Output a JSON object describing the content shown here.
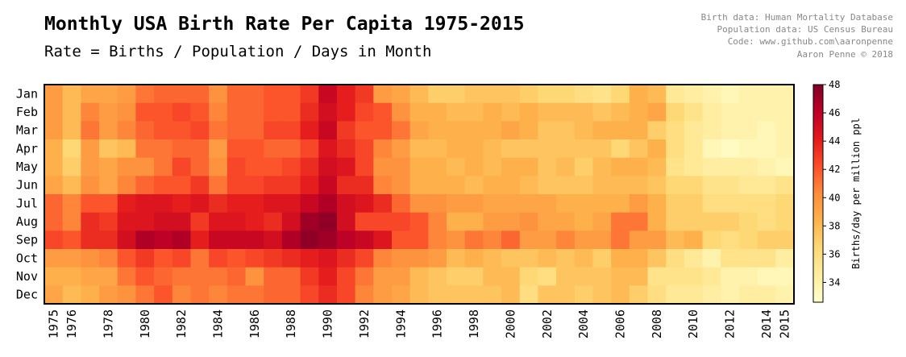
{
  "chart_data": {
    "type": "heatmap",
    "title": "Monthly USA Birth Rate Per Capita 1975-2015",
    "subtitle": "Rate = Births / Population / Days in Month",
    "credits": [
      "Birth data: Human Mortality Database",
      "Population data: US Census Bureau",
      "Code: www.github.com\\aaronpenne",
      "Aaron Penne © 2018"
    ],
    "row_labels": [
      "Jan",
      "Feb",
      "Mar",
      "Apr",
      "May",
      "Jun",
      "Jul",
      "Aug",
      "Sep",
      "Oct",
      "Nov",
      "Dec"
    ],
    "years": [
      1975,
      1976,
      1977,
      1978,
      1979,
      1980,
      1981,
      1982,
      1983,
      1984,
      1985,
      1986,
      1987,
      1988,
      1989,
      1990,
      1991,
      1992,
      1993,
      1994,
      1995,
      1996,
      1997,
      1998,
      1999,
      2000,
      2001,
      2002,
      2003,
      2004,
      2005,
      2006,
      2007,
      2008,
      2009,
      2010,
      2011,
      2012,
      2013,
      2014,
      2015
    ],
    "x_tick_labels": [
      "1975",
      "1976",
      "1978",
      "1980",
      "1982",
      "1984",
      "1986",
      "1988",
      "1990",
      "1992",
      "1994",
      "1996",
      "1998",
      "2000",
      "2002",
      "2004",
      "2006",
      "2008",
      "2010",
      "2012",
      "2014",
      "2015"
    ],
    "colorbar": {
      "label": "Births/day per million ppl",
      "ticks": [
        "34",
        "36",
        "38",
        "40",
        "42",
        "44",
        "46",
        "48"
      ],
      "vmin": 32.6,
      "vmax": 48,
      "colormap": "YlOrRd"
    },
    "values": [
      [
        39.5,
        38.0,
        39.0,
        39.0,
        39.5,
        41.0,
        41.5,
        41.5,
        41.5,
        40.0,
        41.5,
        41.5,
        42.0,
        42.0,
        43.0,
        45.5,
        44.0,
        43.0,
        39.5,
        39.0,
        38.0,
        37.0,
        37.0,
        37.5,
        37.5,
        37.5,
        37.0,
        36.5,
        36.5,
        36.0,
        35.5,
        36.5,
        38.5,
        38.0,
        35.0,
        34.5,
        34.0,
        33.5,
        34.0,
        34.0,
        34.0
      ],
      [
        39.5,
        38.0,
        40.5,
        39.5,
        40.0,
        42.0,
        42.0,
        42.5,
        42.0,
        40.5,
        41.5,
        41.5,
        42.0,
        42.0,
        43.5,
        45.0,
        44.0,
        42.5,
        42.0,
        40.0,
        38.5,
        38.5,
        38.0,
        38.0,
        38.5,
        38.0,
        38.5,
        38.0,
        38.0,
        38.0,
        37.5,
        38.0,
        38.5,
        39.0,
        36.5,
        35.5,
        34.5,
        34.0,
        34.0,
        34.0,
        34.0
      ],
      [
        39.5,
        38.0,
        41.0,
        39.5,
        40.5,
        41.5,
        42.0,
        42.0,
        42.5,
        41.0,
        41.5,
        41.5,
        42.5,
        42.5,
        44.0,
        45.5,
        43.0,
        42.0,
        42.0,
        41.0,
        39.0,
        38.5,
        38.5,
        38.5,
        38.5,
        39.0,
        38.5,
        37.5,
        37.5,
        38.0,
        38.5,
        38.5,
        38.5,
        37.0,
        36.0,
        35.0,
        34.5,
        34.0,
        34.0,
        33.5,
        34.0
      ],
      [
        38.5,
        36.5,
        39.5,
        37.5,
        38.0,
        41.0,
        41.0,
        41.5,
        41.5,
        39.5,
        42.0,
        42.0,
        41.5,
        41.5,
        42.5,
        44.5,
        43.5,
        42.5,
        40.5,
        39.5,
        38.0,
        38.0,
        38.5,
        38.5,
        38.0,
        37.5,
        37.5,
        37.5,
        37.5,
        37.5,
        37.5,
        36.5,
        37.5,
        38.5,
        36.0,
        35.0,
        33.5,
        33.0,
        33.5,
        33.5,
        34.0
      ],
      [
        38.5,
        37.0,
        39.5,
        39.0,
        40.0,
        40.0,
        41.0,
        42.5,
        41.5,
        40.0,
        42.5,
        42.0,
        42.0,
        42.5,
        43.5,
        45.0,
        44.5,
        42.5,
        40.0,
        40.0,
        38.5,
        38.5,
        38.0,
        38.5,
        38.0,
        38.5,
        38.5,
        37.5,
        38.0,
        37.0,
        38.0,
        38.5,
        38.5,
        38.0,
        35.5,
        35.0,
        34.5,
        34.5,
        34.5,
        34.0,
        33.5
      ],
      [
        39.0,
        38.0,
        40.0,
        39.0,
        40.5,
        41.5,
        42.0,
        42.0,
        43.0,
        41.0,
        42.5,
        42.5,
        43.0,
        43.0,
        44.0,
        45.5,
        43.5,
        43.5,
        40.5,
        40.0,
        38.5,
        38.5,
        38.5,
        38.0,
        38.5,
        38.5,
        38.0,
        37.5,
        37.5,
        37.5,
        38.0,
        38.0,
        38.0,
        37.5,
        36.5,
        36.5,
        35.5,
        35.5,
        35.0,
        35.0,
        35.5
      ],
      [
        41.5,
        40.5,
        42.0,
        42.0,
        44.0,
        44.5,
        44.5,
        44.0,
        44.5,
        43.5,
        44.0,
        44.0,
        44.5,
        44.5,
        45.5,
        46.5,
        45.0,
        44.5,
        43.5,
        41.5,
        40.0,
        40.0,
        39.5,
        39.5,
        39.0,
        39.0,
        39.0,
        39.0,
        38.5,
        38.5,
        38.5,
        38.5,
        39.5,
        38.5,
        37.0,
        37.0,
        36.0,
        36.0,
        36.0,
        36.0,
        36.5
      ],
      [
        41.5,
        40.5,
        43.5,
        43.0,
        44.5,
        44.5,
        45.0,
        45.0,
        43.0,
        44.5,
        44.5,
        44.0,
        43.5,
        45.0,
        47.0,
        47.5,
        45.0,
        42.5,
        42.5,
        42.5,
        42.0,
        40.5,
        38.5,
        38.5,
        39.5,
        39.5,
        40.0,
        39.0,
        39.0,
        38.5,
        39.0,
        41.0,
        41.0,
        38.5,
        37.0,
        37.0,
        37.0,
        37.0,
        36.5,
        36.0,
        36.5
      ],
      [
        42.5,
        42.0,
        43.5,
        43.5,
        45.0,
        46.5,
        46.0,
        46.5,
        44.0,
        45.5,
        45.5,
        45.5,
        45.0,
        46.5,
        47.5,
        47.0,
        46.0,
        45.5,
        44.5,
        42.0,
        42.0,
        40.5,
        40.0,
        41.0,
        40.5,
        41.5,
        39.5,
        39.5,
        40.5,
        39.5,
        39.5,
        41.0,
        39.5,
        39.5,
        38.0,
        38.5,
        36.5,
        36.0,
        36.5,
        37.0,
        37.0
      ],
      [
        39.5,
        39.5,
        40.0,
        40.5,
        42.0,
        43.0,
        42.0,
        42.5,
        41.0,
        42.5,
        42.0,
        42.5,
        43.0,
        43.5,
        44.0,
        44.5,
        43.5,
        42.5,
        40.5,
        40.0,
        40.0,
        39.5,
        38.0,
        38.5,
        38.0,
        37.5,
        37.5,
        38.0,
        37.5,
        38.0,
        37.0,
        38.5,
        38.5,
        37.5,
        36.0,
        35.0,
        34.0,
        35.5,
        35.5,
        35.5,
        34.5
      ],
      [
        38.5,
        38.5,
        39.0,
        39.0,
        41.0,
        42.0,
        41.5,
        41.0,
        41.0,
        41.0,
        41.5,
        40.0,
        41.5,
        41.5,
        43.0,
        44.0,
        42.5,
        41.0,
        39.5,
        39.5,
        38.0,
        37.5,
        37.0,
        37.0,
        38.0,
        38.0,
        36.5,
        36.0,
        37.5,
        37.5,
        37.5,
        38.0,
        38.0,
        35.5,
        35.5,
        35.5,
        35.0,
        34.0,
        34.0,
        33.5,
        33.5
      ],
      [
        39.0,
        38.0,
        38.5,
        39.5,
        40.0,
        41.0,
        42.0,
        40.5,
        41.0,
        40.5,
        41.0,
        41.0,
        41.5,
        41.5,
        42.5,
        43.5,
        42.5,
        40.5,
        39.5,
        39.0,
        38.0,
        37.5,
        37.5,
        37.5,
        37.5,
        38.0,
        36.0,
        37.5,
        37.5,
        37.0,
        37.5,
        38.0,
        37.0,
        36.0,
        35.0,
        35.0,
        34.5,
        34.0,
        34.5,
        34.5,
        34.0
      ]
    ]
  }
}
